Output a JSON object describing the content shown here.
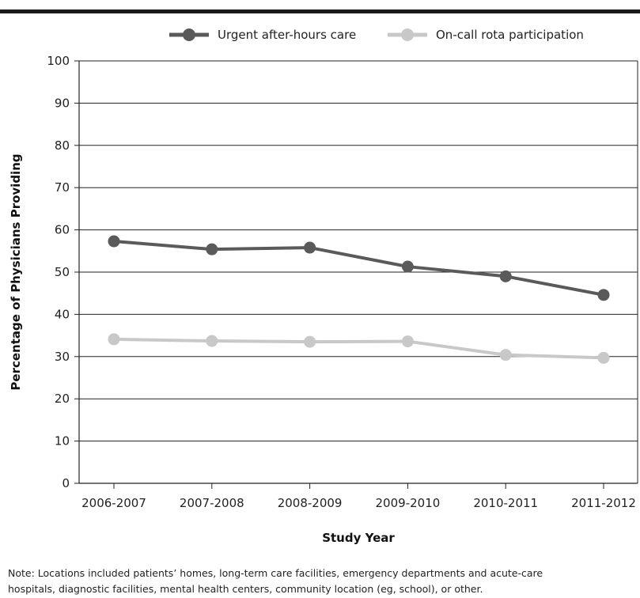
{
  "chart_data": {
    "type": "line",
    "title": "",
    "xlabel": "Study Year",
    "ylabel": "Percentage of Physicians Providing",
    "ylim": [
      0,
      100
    ],
    "yticks": [
      0,
      10,
      20,
      30,
      40,
      50,
      60,
      70,
      80,
      90,
      100
    ],
    "grid": "horizontal",
    "legend": "top",
    "categories": [
      "2006-2007",
      "2007-2008",
      "2008-2009",
      "2009-2010",
      "2010-2011",
      "2011-2012"
    ],
    "series": [
      {
        "name": "Urgent after-hours care",
        "color": "#5a5a5a",
        "values": [
          57.3,
          55.4,
          55.8,
          51.3,
          49.0,
          44.6
        ]
      },
      {
        "name": "On-call rota participation",
        "color": "#c8c8c8",
        "values": [
          34.1,
          33.7,
          33.5,
          33.6,
          30.4,
          29.7
        ]
      }
    ]
  },
  "note": {
    "line1": "Note: Locations included patients’ homes, long-term care facilities, emergency departments and acute-care",
    "line2": "hospitals, diagnostic facilities, mental health centers, community location (eg, school), or other."
  }
}
